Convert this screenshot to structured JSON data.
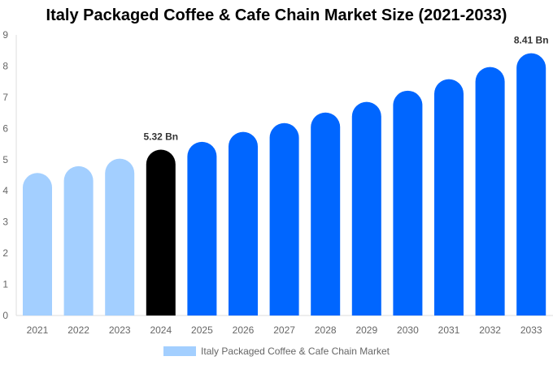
{
  "chart_data": {
    "type": "bar",
    "title": "Italy Packaged Coffee & Cafe Chain Market Size (2021-2033)",
    "categories": [
      "2021",
      "2022",
      "2023",
      "2024",
      "2025",
      "2026",
      "2027",
      "2028",
      "2029",
      "2030",
      "2031",
      "2032",
      "2033"
    ],
    "series": [
      {
        "name": "Italy Packaged Coffee & Cafe Chain Market",
        "values": [
          4.57,
          4.79,
          5.03,
          5.32,
          5.57,
          5.89,
          6.17,
          6.51,
          6.85,
          7.21,
          7.58,
          7.97,
          8.41
        ]
      }
    ],
    "data_labels": {
      "3": "5.32 Bn",
      "12": "8.41 Bn"
    },
    "ylim": [
      0,
      9
    ],
    "yticks": [
      0,
      1,
      2,
      3,
      4,
      5,
      6,
      7,
      8,
      9
    ],
    "xlabel": "",
    "ylabel": "",
    "grid": false,
    "legend_position": "bottom",
    "colors": {
      "historical": "#a3cfff",
      "current": "#000000",
      "forecast": "#0066ff"
    }
  }
}
